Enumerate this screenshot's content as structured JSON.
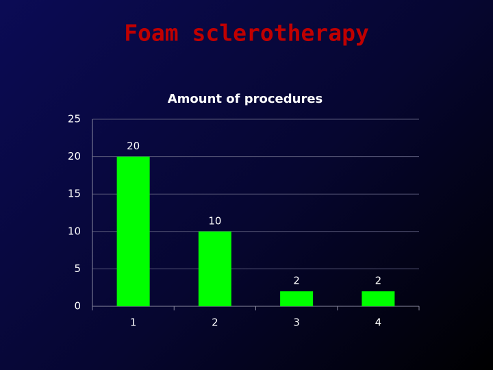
{
  "title": "Foam sclerotherapy",
  "chart_data": {
    "type": "bar",
    "title": "Amount of procedures",
    "categories": [
      "1",
      "2",
      "3",
      "4"
    ],
    "values": [
      20,
      10,
      2,
      2
    ],
    "color": "#00ff00",
    "ylim": [
      0,
      25
    ],
    "yticks": [
      0,
      5,
      10,
      15,
      20,
      25
    ],
    "grid": true
  }
}
